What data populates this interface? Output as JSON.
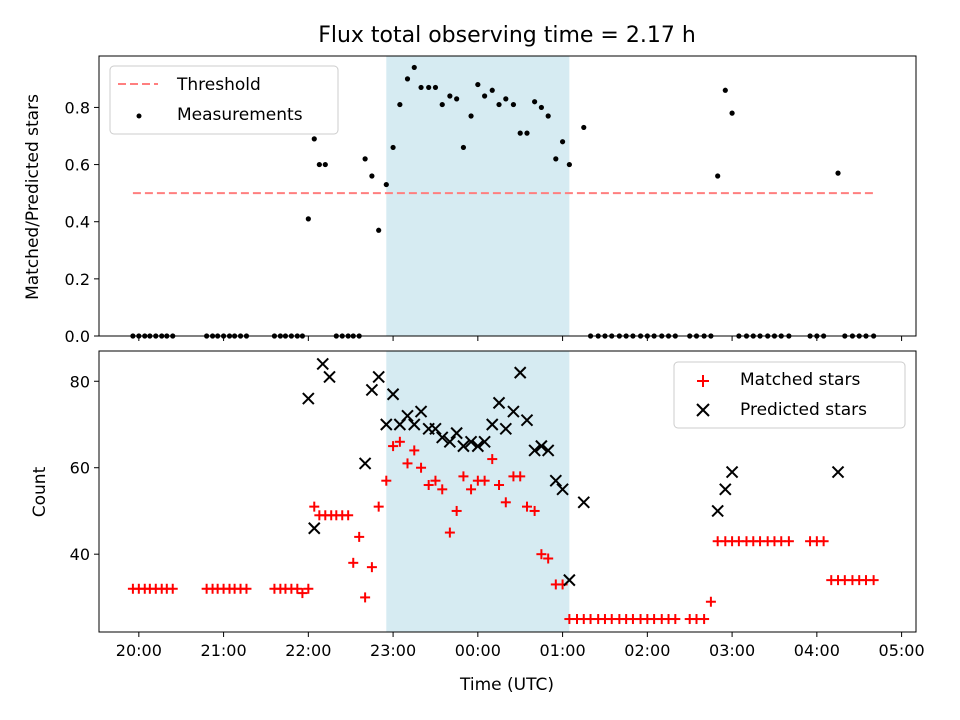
{
  "chart_data": [
    {
      "type": "scatter",
      "title": "Flux total observing time = 2.17 h",
      "xlabel": "",
      "ylabel": "Matched/Predicted stars",
      "ylim": [
        0,
        0.98
      ],
      "yticks": [
        0.0,
        0.2,
        0.4,
        0.6,
        0.8
      ],
      "ytick_labels": [
        "0.0",
        "0.2",
        "0.4",
        "0.6",
        "0.8"
      ],
      "xlim_hours": [
        19.53,
        29.17
      ],
      "shaded_span_hours": [
        22.92,
        25.08
      ],
      "shade_color": "#add8e6",
      "legend": "top-left",
      "threshold": {
        "name": "Threshold",
        "y": 0.5,
        "x_range": [
          19.93,
          28.67
        ],
        "color": "#ff7f7f",
        "style": "dashed"
      },
      "series": [
        {
          "name": "Measurements",
          "color": "#000000",
          "marker": "dot",
          "x": [
            19.93,
            20.0,
            20.07,
            20.13,
            20.2,
            20.27,
            20.33,
            20.4,
            20.8,
            20.87,
            20.93,
            21.0,
            21.07,
            21.13,
            21.2,
            21.27,
            21.6,
            21.67,
            21.73,
            21.8,
            21.87,
            21.93,
            22.0,
            22.07,
            22.13,
            22.2,
            22.33,
            22.4,
            22.47,
            22.53,
            22.6,
            22.67,
            22.75,
            22.83,
            22.92,
            23.0,
            23.08,
            23.17,
            23.25,
            23.33,
            23.42,
            23.5,
            23.58,
            23.67,
            23.75,
            23.83,
            23.92,
            24.0,
            24.08,
            24.17,
            24.25,
            24.33,
            24.42,
            24.5,
            24.58,
            24.67,
            24.75,
            24.83,
            24.92,
            25.0,
            25.08,
            25.25,
            25.33,
            25.42,
            25.5,
            25.58,
            25.67,
            25.75,
            25.83,
            25.92,
            26.0,
            26.08,
            26.17,
            26.25,
            26.33,
            26.5,
            26.58,
            26.67,
            26.75,
            26.83,
            26.92,
            27.0,
            27.08,
            27.17,
            27.25,
            27.33,
            27.42,
            27.5,
            27.58,
            27.67,
            27.92,
            28.0,
            28.08,
            28.25,
            28.33,
            28.42,
            28.5,
            28.58,
            28.67
          ],
          "y": [
            0,
            0,
            0,
            0,
            0,
            0,
            0,
            0,
            0,
            0,
            0,
            0,
            0,
            0,
            0,
            0,
            0,
            0,
            0,
            0,
            0,
            0,
            0.41,
            0.69,
            0.6,
            0.6,
            0,
            0,
            0,
            0,
            0,
            0.62,
            0.56,
            0.37,
            0.53,
            0.66,
            0.81,
            0.9,
            0.94,
            0.87,
            0.87,
            0.87,
            0.81,
            0.84,
            0.83,
            0.66,
            0.77,
            0.88,
            0.84,
            0.86,
            0.81,
            0.83,
            0.81,
            0.71,
            0.71,
            0.82,
            0.8,
            0.77,
            0.62,
            0.68,
            0.6,
            0.73,
            0,
            0,
            0,
            0,
            0,
            0,
            0,
            0,
            0,
            0,
            0,
            0,
            0,
            0,
            0,
            0,
            0,
            0.56,
            0.86,
            0.78,
            0,
            0,
            0,
            0,
            0,
            0,
            0,
            0,
            0,
            0,
            0,
            0.57,
            0,
            0,
            0,
            0,
            0
          ]
        }
      ]
    },
    {
      "type": "scatter",
      "title": "",
      "xlabel": "Time (UTC)",
      "ylabel": "Count",
      "ylim": [
        22,
        87
      ],
      "yticks": [
        40,
        60,
        80
      ],
      "ytick_labels": [
        "40",
        "60",
        "80"
      ],
      "xlim_hours": [
        19.53,
        29.17
      ],
      "xticks_hours": [
        20,
        21,
        22,
        23,
        24,
        25,
        26,
        27,
        28,
        29
      ],
      "xtick_labels": [
        "20:00",
        "21:00",
        "22:00",
        "23:00",
        "00:00",
        "01:00",
        "02:00",
        "03:00",
        "04:00",
        "05:00"
      ],
      "shaded_span_hours": [
        22.92,
        25.08
      ],
      "shade_color": "#add8e6",
      "legend": "top-right",
      "series": [
        {
          "name": "Matched stars",
          "color": "#ff0000",
          "marker": "plus",
          "x": [
            19.93,
            20.0,
            20.07,
            20.13,
            20.2,
            20.27,
            20.33,
            20.4,
            20.8,
            20.87,
            20.93,
            21.0,
            21.07,
            21.13,
            21.2,
            21.27,
            21.6,
            21.67,
            21.73,
            21.8,
            21.87,
            21.93,
            22.0,
            22.07,
            22.13,
            22.2,
            22.27,
            22.33,
            22.4,
            22.47,
            22.53,
            22.6,
            22.67,
            22.75,
            22.83,
            22.92,
            23.0,
            23.08,
            23.17,
            23.25,
            23.33,
            23.42,
            23.5,
            23.58,
            23.67,
            23.75,
            23.83,
            23.92,
            24.0,
            24.08,
            24.17,
            24.25,
            24.33,
            24.42,
            24.5,
            24.58,
            24.67,
            24.75,
            24.83,
            24.92,
            25.0,
            25.08,
            25.17,
            25.25,
            25.33,
            25.42,
            25.5,
            25.58,
            25.67,
            25.75,
            25.83,
            25.92,
            26.0,
            26.08,
            26.17,
            26.25,
            26.33,
            26.5,
            26.58,
            26.67,
            26.75,
            26.83,
            26.92,
            27.0,
            27.08,
            27.17,
            27.25,
            27.33,
            27.42,
            27.5,
            27.58,
            27.67,
            27.92,
            28.0,
            28.08,
            28.17,
            28.25,
            28.33,
            28.42,
            28.5,
            28.58,
            28.67
          ],
          "y": [
            32,
            32,
            32,
            32,
            32,
            32,
            32,
            32,
            32,
            32,
            32,
            32,
            32,
            32,
            32,
            32,
            32,
            32,
            32,
            32,
            32,
            31,
            32,
            51,
            49,
            49,
            49,
            49,
            49,
            49,
            38,
            44,
            30,
            37,
            51,
            57,
            65,
            66,
            61,
            64,
            60,
            56,
            57,
            55,
            45,
            50,
            58,
            55,
            57,
            57,
            62,
            56,
            52,
            58,
            58,
            51,
            50,
            40,
            39,
            33,
            33,
            25,
            25,
            25,
            25,
            25,
            25,
            25,
            25,
            25,
            25,
            25,
            25,
            25,
            25,
            25,
            25,
            25,
            25,
            25,
            29,
            43,
            43,
            43,
            43,
            43,
            43,
            43,
            43,
            43,
            43,
            43,
            43,
            43,
            43,
            34,
            34,
            34,
            34,
            34,
            34,
            34
          ],
          "note_x_override": []
        },
        {
          "name": "Predicted stars",
          "color": "#000000",
          "marker": "x",
          "x": [
            22.0,
            22.07,
            22.17,
            22.25,
            22.67,
            22.75,
            22.83,
            22.92,
            23.0,
            23.08,
            23.17,
            23.25,
            23.33,
            23.42,
            23.5,
            23.58,
            23.67,
            23.75,
            23.83,
            23.92,
            24.0,
            24.08,
            24.17,
            24.25,
            24.33,
            24.42,
            24.5,
            24.58,
            24.67,
            24.75,
            24.83,
            24.92,
            25.0,
            25.08,
            25.25,
            26.83,
            26.92,
            27.0,
            28.25
          ],
          "y": [
            76,
            46,
            84,
            81,
            61,
            78,
            81,
            70,
            77,
            70,
            72,
            70,
            73,
            69,
            69,
            67,
            66,
            68,
            65,
            66,
            65,
            66,
            70,
            75,
            69,
            73,
            82,
            71,
            64,
            65,
            64,
            57,
            55,
            34,
            52,
            50,
            55,
            59,
            59
          ]
        }
      ]
    }
  ]
}
